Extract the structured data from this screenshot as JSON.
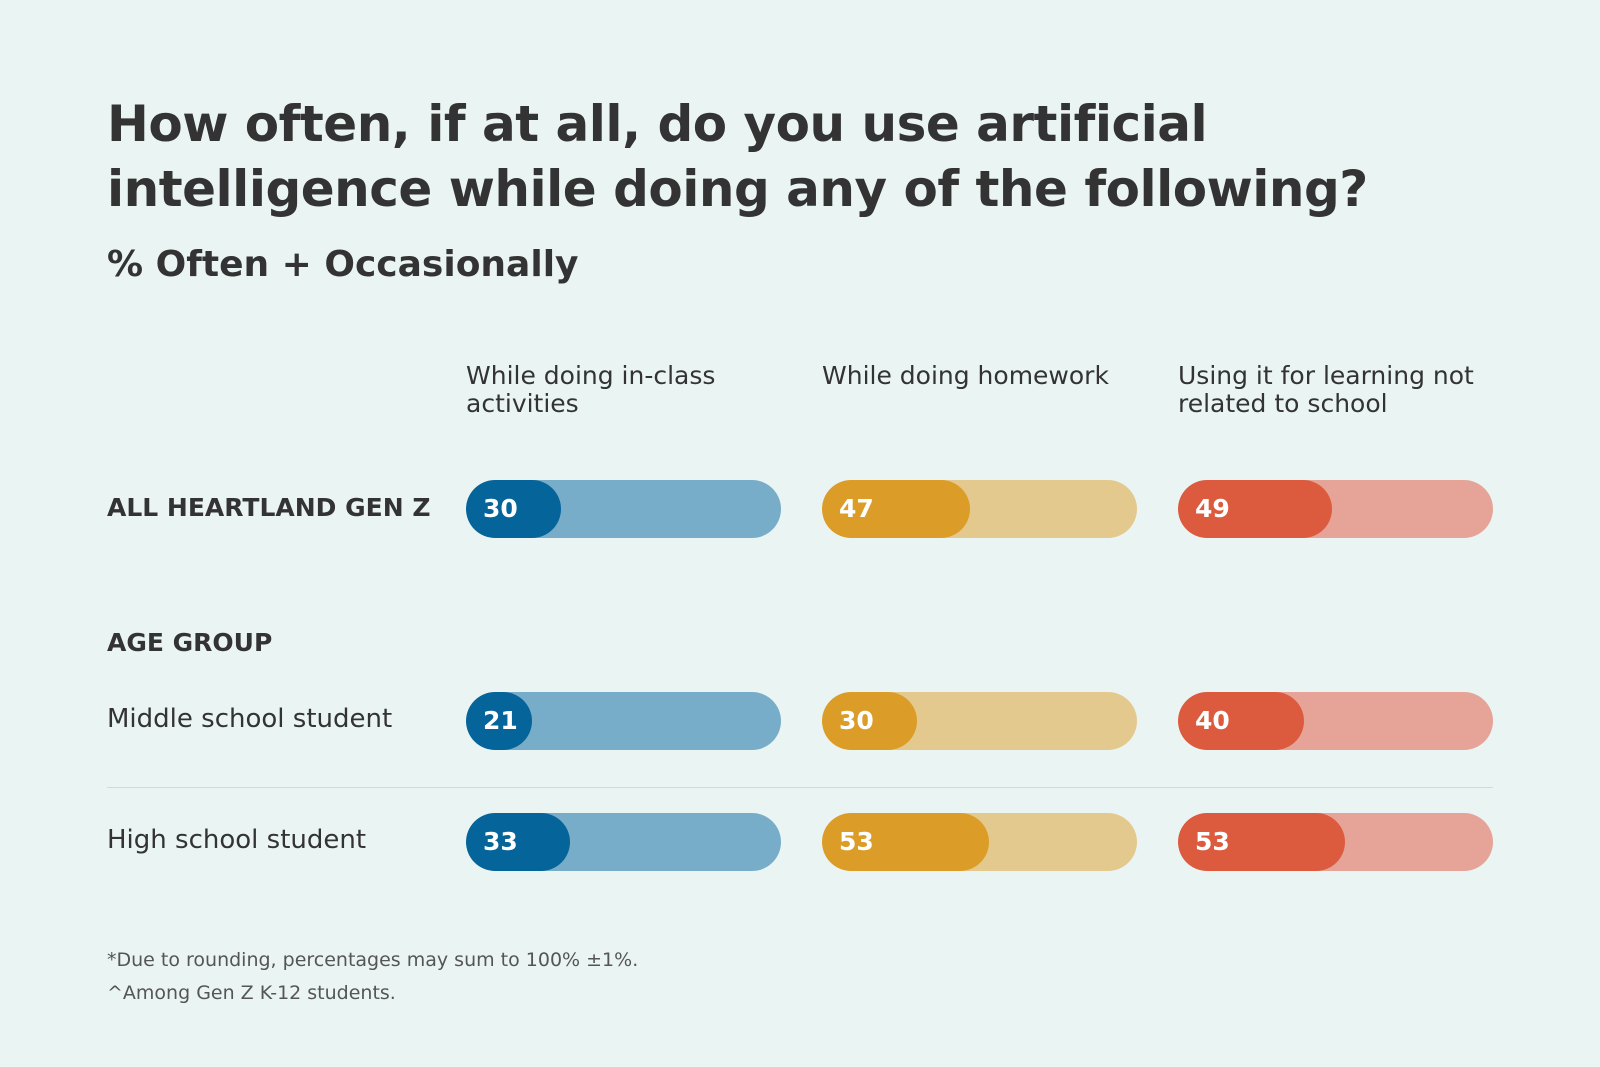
{
  "title": "How often, if at all, do you use artificial intelligence while doing any of the following?",
  "subtitle": "% Often + Occasionally",
  "chart_data": {
    "type": "bar",
    "categories": [
      "While doing in-class activities",
      "While doing homework",
      "Using it for learning not related to school"
    ],
    "rows": [
      {
        "label": "ALL HEARTLAND GEN Z",
        "values": [
          30,
          47,
          49
        ]
      },
      {
        "label": "Middle school student",
        "group": "AGE GROUP",
        "values": [
          21,
          30,
          40
        ]
      },
      {
        "label": "High school student",
        "group": "AGE GROUP",
        "values": [
          33,
          53,
          53
        ]
      }
    ],
    "group_label": "AGE GROUP",
    "xlim": [
      0,
      100
    ],
    "colors": {
      "fill": [
        "#05649a",
        "#dc9d28",
        "#dc5b3e"
      ],
      "track": [
        "#78adc9",
        "#e4c98f",
        "#e5a497"
      ]
    }
  },
  "footnotes": [
    "*Due to rounding, percentages may sum to 100% ±1%.",
    "^Among Gen Z K-12 students."
  ]
}
